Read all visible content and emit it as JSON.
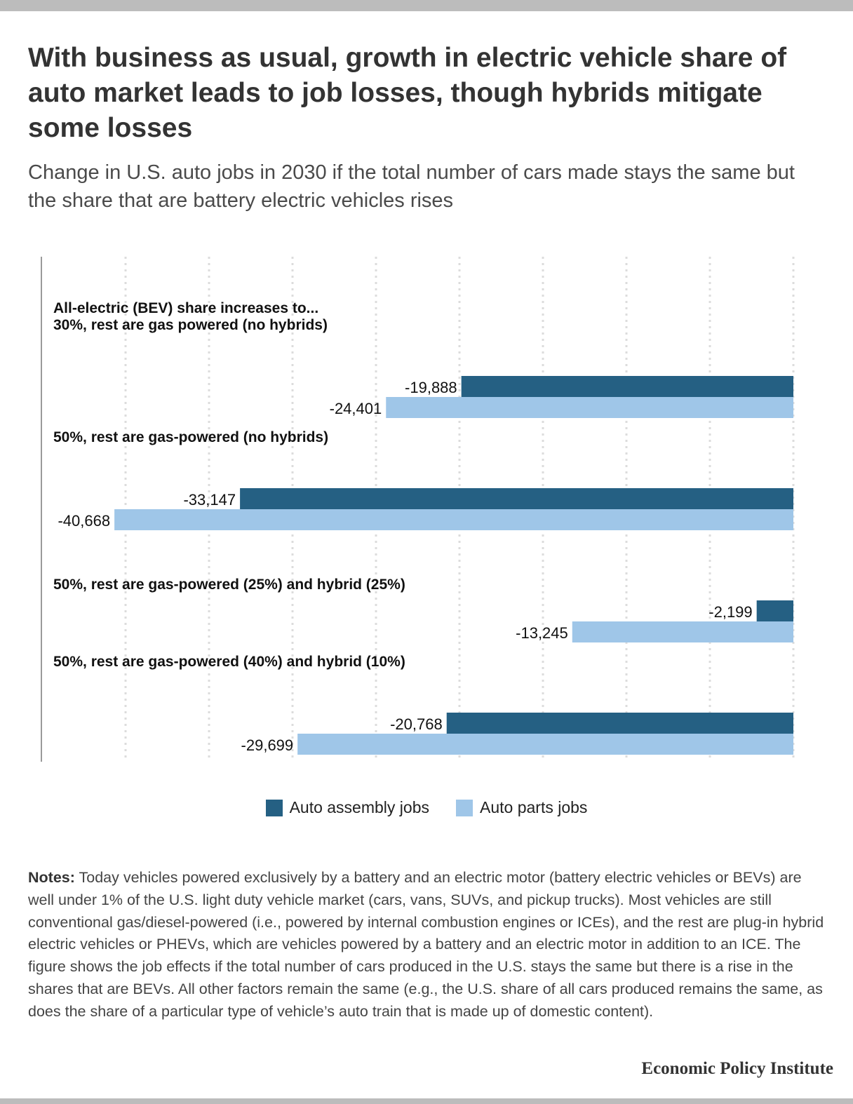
{
  "title": "With business as usual, growth in electric vehicle share of auto market leads to job losses, though hybrids mitigate some losses",
  "subtitle": "Change in U.S. auto jobs in 2030 if the total number of cars made stays the same but the share that are battery electric vehicles rises",
  "notes": {
    "label": "Notes:",
    "text": " Today vehicles powered exclusively by a battery and an electric motor (battery electric vehicles or BEVs) are well under 1% of the U.S. light duty vehicle market (cars, vans, SUVs, and pickup trucks). Most vehicles are still conventional gas/diesel-powered (i.e., powered by internal combustion engines or ICEs), and the rest are plug-in hybrid electric vehicles or PHEVs, which are vehicles powered by a battery and an electric motor in addition to an ICE. The figure shows the job effects if the total number of cars produced in the U.S. stays the same but there is a rise in the shares that are BEVs. All other factors remain the same (e.g., the U.S. share of all cars produced remains the same, as does the share of a particular type of vehicle’s auto train that is made up of domestic content)."
  },
  "source": "Economic Policy Institute",
  "colors": {
    "assembly": "#256083",
    "parts": "#9fc6e8",
    "grid": "#dcdcdc",
    "axis": "#9a9a9a"
  },
  "chart_data": {
    "type": "bar",
    "orientation": "horizontal",
    "group_heading": "All-electric (BEV) share increases to...",
    "categories": [
      "30%, rest are gas powered (no hybrids)",
      "50%, rest are gas-powered (no hybrids)",
      "50%, rest are gas-powered (25%) and hybrid (25%)",
      "50%, rest are gas-powered (40%) and hybrid (10%)"
    ],
    "series": [
      {
        "name": "Auto assembly jobs",
        "values": [
          -19888,
          -33147,
          -2199,
          -20768
        ],
        "labels": [
          "-19,888",
          "-33,147",
          "-2,199",
          "-20,768"
        ]
      },
      {
        "name": "Auto parts jobs",
        "values": [
          -24401,
          -40668,
          -13245,
          -29699
        ],
        "labels": [
          "-24,401",
          "-40,668",
          "-13,245",
          "-29,699"
        ]
      }
    ],
    "xlim": [
      -45000,
      0
    ],
    "grid": true,
    "gridlines": [
      -40000,
      -35000,
      -30000,
      -25000,
      -20000,
      -15000,
      -10000,
      -5000,
      0
    ],
    "legend_position": "bottom-center"
  }
}
